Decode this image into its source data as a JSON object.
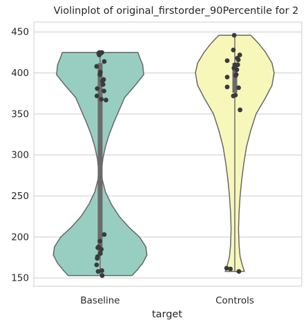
{
  "chart_data": {
    "type": "violin",
    "title": "Violinplot of original_firstorder_90Percentile for 2",
    "xlabel": "target",
    "ylabel": "",
    "categories": [
      "Baseline",
      "Controls"
    ],
    "ylim": [
      140,
      462
    ],
    "yticks": [
      150,
      200,
      250,
      300,
      350,
      400,
      450
    ],
    "grid": "horizontal",
    "legend": "none",
    "violin_fill_colors": [
      "#98cdc2",
      "#f7f7ba"
    ],
    "violin_edge_color": "#666666",
    "point_color": "#3a3a3a",
    "iqr_bar_color": "#6b6b6b",
    "groups": [
      {
        "name": "Baseline",
        "min": 153,
        "max": 425,
        "q1": 178,
        "q3": 412,
        "density": [
          [
            153,
            0.6
          ],
          [
            160,
            0.7
          ],
          [
            168,
            0.8
          ],
          [
            178,
            0.88
          ],
          [
            188,
            0.86
          ],
          [
            200,
            0.74
          ],
          [
            212,
            0.54
          ],
          [
            225,
            0.36
          ],
          [
            240,
            0.21
          ],
          [
            255,
            0.1
          ],
          [
            270,
            0.04
          ],
          [
            282,
            0.03
          ],
          [
            295,
            0.05
          ],
          [
            310,
            0.1
          ],
          [
            325,
            0.17
          ],
          [
            340,
            0.26
          ],
          [
            355,
            0.36
          ],
          [
            370,
            0.46
          ],
          [
            385,
            0.66
          ],
          [
            398,
            0.82
          ],
          [
            410,
            0.8
          ],
          [
            418,
            0.75
          ],
          [
            425,
            0.71
          ]
        ],
        "points": [
          [
            -0.02,
            425
          ],
          [
            0.06,
            425
          ],
          [
            -0.05,
            424
          ],
          [
            0.02,
            424
          ],
          [
            -0.03,
            422
          ],
          [
            0.14,
            414
          ],
          [
            -0.12,
            408
          ],
          [
            0.01,
            401
          ],
          [
            -0.01,
            398
          ],
          [
            0.12,
            392
          ],
          [
            0.08,
            390
          ],
          [
            0.1,
            386
          ],
          [
            0.13,
            378
          ],
          [
            -0.1,
            381
          ],
          [
            -0.11,
            372
          ],
          [
            0.2,
            367
          ],
          [
            0.04,
            368
          ],
          [
            0.14,
            203
          ],
          [
            -0.01,
            195
          ],
          [
            -0.05,
            188
          ],
          [
            -0.08,
            187
          ],
          [
            0.04,
            185
          ],
          [
            0.01,
            180
          ],
          [
            -0.09,
            176
          ],
          [
            -0.1,
            174
          ],
          [
            -0.12,
            166
          ],
          [
            0.06,
            159
          ],
          [
            -0.07,
            158
          ],
          [
            0.07,
            153
          ]
        ]
      },
      {
        "name": "Controls",
        "min": 158,
        "max": 446,
        "q1": 376,
        "q3": 412,
        "density": [
          [
            158,
            0.18
          ],
          [
            166,
            0.14
          ],
          [
            176,
            0.1
          ],
          [
            190,
            0.08
          ],
          [
            210,
            0.07
          ],
          [
            230,
            0.08
          ],
          [
            250,
            0.1
          ],
          [
            270,
            0.13
          ],
          [
            290,
            0.17
          ],
          [
            310,
            0.22
          ],
          [
            330,
            0.3
          ],
          [
            350,
            0.4
          ],
          [
            370,
            0.58
          ],
          [
            385,
            0.7
          ],
          [
            400,
            0.74
          ],
          [
            412,
            0.7
          ],
          [
            425,
            0.58
          ],
          [
            435,
            0.46
          ],
          [
            442,
            0.36
          ],
          [
            446,
            0.3
          ]
        ],
        "points": [
          [
            -0.02,
            446
          ],
          [
            -0.05,
            428
          ],
          [
            0.17,
            422
          ],
          [
            0.09,
            418
          ],
          [
            0.12,
            416
          ],
          [
            -0.26,
            415
          ],
          [
            0.01,
            410
          ],
          [
            0.1,
            410
          ],
          [
            -0.03,
            406
          ],
          [
            0.07,
            404
          ],
          [
            0.05,
            398
          ],
          [
            0.03,
            397
          ],
          [
            -0.26,
            395
          ],
          [
            0.13,
            382
          ],
          [
            -0.26,
            383
          ],
          [
            -0.05,
            372
          ],
          [
            0.02,
            373
          ],
          [
            0.18,
            355
          ],
          [
            -0.28,
            162
          ],
          [
            -0.15,
            161
          ],
          [
            0.14,
            158
          ]
        ]
      }
    ]
  }
}
